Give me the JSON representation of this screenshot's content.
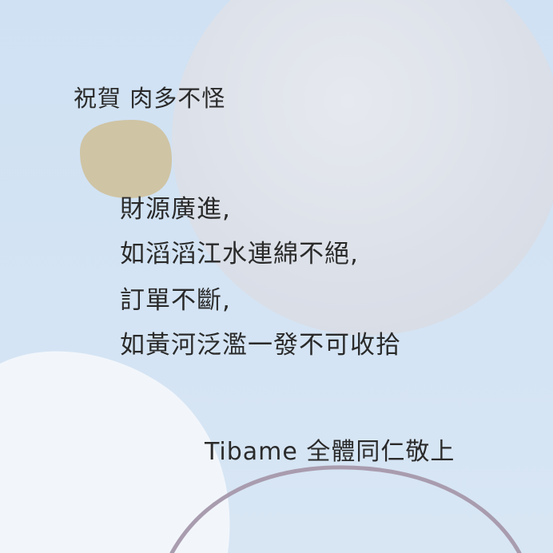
{
  "greeting": {
    "title": "祝賀 肉多不怪"
  },
  "blessing": {
    "lines": [
      "財源廣進,",
      "如滔滔江水連綿不絕,",
      "訂單不斷,",
      "如黃河泛濫一發不可收拾"
    ]
  },
  "signature": "Tibame 全體同仁敬上",
  "colors": {
    "background": "#d2e3f3",
    "grey_circle": "#dfe4ec",
    "white_blob": "#f2f6fb",
    "tan_blob": "#cfc4a4",
    "arc_stroke": "#a99caf",
    "text": "#2a2a2a"
  }
}
